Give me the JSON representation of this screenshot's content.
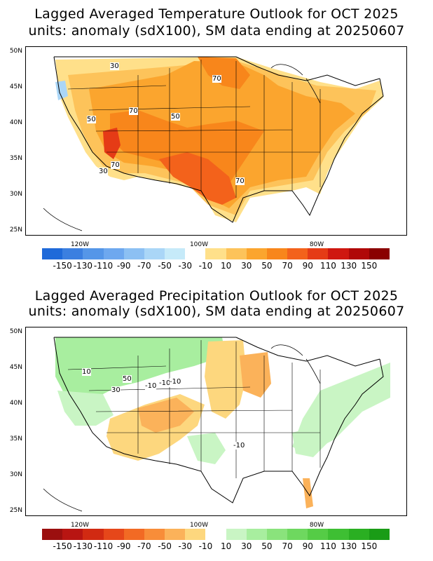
{
  "temperature": {
    "title_line1": "Lagged Averaged Temperature Outlook for OCT 2025",
    "title_line2": "units: anomaly (sdX100), SM data ending at 20250607",
    "lat_labels": [
      "50N",
      "45N",
      "40N",
      "35N",
      "30N",
      "25N"
    ],
    "lon_labels": [
      "120W",
      "100W",
      "80W"
    ],
    "contour_labels": [
      "30",
      "70",
      "70",
      "50",
      "50",
      "70",
      "30",
      "70"
    ],
    "colorbar": {
      "colors": [
        "#1f6ad9",
        "#3b7fe0",
        "#5596e8",
        "#6ea8ef",
        "#8cc0f3",
        "#aad6f7",
        "#c6eaf9",
        "#ffffff",
        "#ffe08a",
        "#fdc35a",
        "#fba52e",
        "#f8861b",
        "#f3621b",
        "#e53b16",
        "#cf1710",
        "#b00808",
        "#8a0000"
      ],
      "labels": [
        "-150",
        "-130",
        "-110",
        "-90",
        "-70",
        "-50",
        "-30",
        "-10",
        "10",
        "30",
        "50",
        "70",
        "90",
        "110",
        "130",
        "150"
      ]
    }
  },
  "precipitation": {
    "title_line1": "Lagged Averaged Precipitation Outlook for OCT 2025",
    "title_line2": "units: anomaly (sdX100), SM data ending at 20250607",
    "lat_labels": [
      "50N",
      "45N",
      "40N",
      "35N",
      "30N",
      "25N"
    ],
    "lon_labels": [
      "120W",
      "100W",
      "80W"
    ],
    "contour_labels": [
      "10",
      "50",
      "30",
      "-10",
      "-10",
      "-10",
      "-10"
    ],
    "colorbar": {
      "colors": [
        "#9b0f0f",
        "#b81512",
        "#d12a12",
        "#e6471a",
        "#f26a24",
        "#f88d39",
        "#fbb25a",
        "#fdd77e",
        "#ffffff",
        "#c9f5c4",
        "#a8ee9f",
        "#8ae37c",
        "#6ed85f",
        "#55cc46",
        "#3ebf33",
        "#2aaf22",
        "#1a9c16"
      ],
      "labels": [
        "-150",
        "-130",
        "-110",
        "-90",
        "-70",
        "-50",
        "-30",
        "-10",
        "10",
        "30",
        "50",
        "70",
        "90",
        "110",
        "130",
        "150"
      ]
    }
  }
}
